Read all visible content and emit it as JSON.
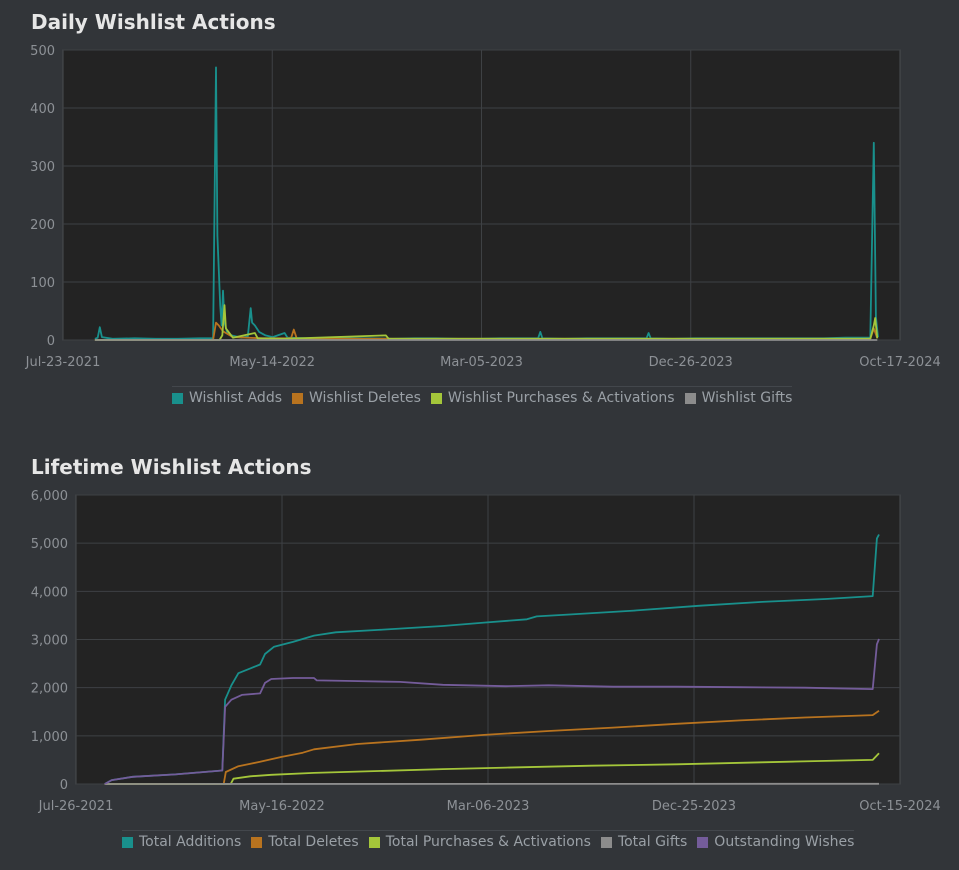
{
  "charts": [
    {
      "title": "Daily Wishlist Actions",
      "legend": [
        "Wishlist Adds",
        "Wishlist Deletes",
        "Wishlist Purchases & Activations",
        "Wishlist Gifts"
      ]
    },
    {
      "title": "Lifetime Wishlist Actions",
      "legend": [
        "Total Additions",
        "Total Deletes",
        "Total Purchases & Activations",
        "Total Gifts",
        "Outstanding Wishes"
      ]
    }
  ],
  "chart_data": [
    {
      "type": "line",
      "title": "Daily Wishlist Actions",
      "x_type": "date",
      "xlim": [
        "2021-07-23",
        "2024-10-17"
      ],
      "x_ticks": [
        "Jul-23-2021",
        "May-14-2022",
        "Mar-05-2023",
        "Dec-26-2023",
        "Oct-17-2024"
      ],
      "ylim": [
        0,
        500
      ],
      "y_ticks": [
        0,
        100,
        200,
        300,
        400,
        500
      ],
      "grid": true,
      "legend_position": "bottom",
      "series": [
        {
          "name": "Wishlist Adds",
          "color": "#19908c",
          "points": [
            [
              "2021-09-06",
              2
            ],
            [
              "2021-09-10",
              4
            ],
            [
              "2021-09-13",
              22
            ],
            [
              "2021-09-16",
              5
            ],
            [
              "2021-10-01",
              2
            ],
            [
              "2021-11-01",
              3
            ],
            [
              "2021-12-01",
              2
            ],
            [
              "2022-01-01",
              2
            ],
            [
              "2022-02-01",
              3
            ],
            [
              "2022-02-20",
              3
            ],
            [
              "2022-02-24",
              470
            ],
            [
              "2022-02-26",
              180
            ],
            [
              "2022-02-28",
              120
            ],
            [
              "2022-03-02",
              60
            ],
            [
              "2022-03-04",
              25
            ],
            [
              "2022-03-06",
              85
            ],
            [
              "2022-03-08",
              30
            ],
            [
              "2022-03-12",
              12
            ],
            [
              "2022-03-18",
              8
            ],
            [
              "2022-04-01",
              4
            ],
            [
              "2022-04-10",
              6
            ],
            [
              "2022-04-14",
              55
            ],
            [
              "2022-04-16",
              30
            ],
            [
              "2022-04-20",
              25
            ],
            [
              "2022-04-26",
              14
            ],
            [
              "2022-05-05",
              8
            ],
            [
              "2022-05-15",
              5
            ],
            [
              "2022-06-01",
              12
            ],
            [
              "2022-06-05",
              4
            ],
            [
              "2022-07-01",
              3
            ],
            [
              "2022-08-01",
              3
            ],
            [
              "2022-09-01",
              3
            ],
            [
              "2022-10-01",
              3
            ],
            [
              "2022-11-01",
              2
            ],
            [
              "2022-12-01",
              3
            ],
            [
              "2023-01-01",
              3
            ],
            [
              "2023-02-01",
              2
            ],
            [
              "2023-03-01",
              2
            ],
            [
              "2023-04-01",
              3
            ],
            [
              "2023-05-01",
              3
            ],
            [
              "2023-05-25",
              3
            ],
            [
              "2023-05-28",
              14
            ],
            [
              "2023-05-31",
              3
            ],
            [
              "2023-07-01",
              2
            ],
            [
              "2023-08-01",
              3
            ],
            [
              "2023-09-01",
              3
            ],
            [
              "2023-10-01",
              3
            ],
            [
              "2023-10-25",
              3
            ],
            [
              "2023-10-28",
              12
            ],
            [
              "2023-10-31",
              3
            ],
            [
              "2023-12-01",
              2
            ],
            [
              "2024-01-01",
              3
            ],
            [
              "2024-02-01",
              3
            ],
            [
              "2024-03-01",
              3
            ],
            [
              "2024-04-01",
              3
            ],
            [
              "2024-05-01",
              3
            ],
            [
              "2024-06-01",
              3
            ],
            [
              "2024-07-01",
              3
            ],
            [
              "2024-08-01",
              4
            ],
            [
              "2024-09-05",
              4
            ],
            [
              "2024-09-10",
              340
            ],
            [
              "2024-09-13",
              40
            ],
            [
              "2024-09-16",
              5
            ]
          ]
        },
        {
          "name": "Wishlist Deletes",
          "color": "#b8731f",
          "points": [
            [
              "2021-09-06",
              0
            ],
            [
              "2022-02-20",
              0
            ],
            [
              "2022-02-24",
              30
            ],
            [
              "2022-02-28",
              25
            ],
            [
              "2022-03-06",
              15
            ],
            [
              "2022-03-20",
              5
            ],
            [
              "2022-05-01",
              3
            ],
            [
              "2022-06-10",
              3
            ],
            [
              "2022-06-14",
              18
            ],
            [
              "2022-06-18",
              3
            ],
            [
              "2022-08-01",
              2
            ],
            [
              "2023-01-01",
              2
            ],
            [
              "2023-06-01",
              2
            ],
            [
              "2024-01-01",
              2
            ],
            [
              "2024-06-01",
              2
            ],
            [
              "2024-09-05",
              2
            ],
            [
              "2024-09-10",
              20
            ],
            [
              "2024-09-15",
              3
            ]
          ]
        },
        {
          "name": "Wishlist Purchases & Activations",
          "color": "#a4c63a",
          "points": [
            [
              "2021-09-06",
              0
            ],
            [
              "2022-03-01",
              0
            ],
            [
              "2022-03-05",
              8
            ],
            [
              "2022-03-08",
              60
            ],
            [
              "2022-03-10",
              20
            ],
            [
              "2022-03-20",
              4
            ],
            [
              "2022-04-20",
              12
            ],
            [
              "2022-04-24",
              3
            ],
            [
              "2022-06-01",
              2
            ],
            [
              "2022-10-22",
              8
            ],
            [
              "2022-10-26",
              2
            ],
            [
              "2023-03-01",
              2
            ],
            [
              "2023-08-01",
              2
            ],
            [
              "2024-02-01",
              2
            ],
            [
              "2024-09-05",
              2
            ],
            [
              "2024-09-10",
              25
            ],
            [
              "2024-09-12",
              38
            ],
            [
              "2024-09-15",
              3
            ]
          ]
        },
        {
          "name": "Wishlist Gifts",
          "color": "#8c8c8c",
          "points": [
            [
              "2021-09-06",
              0
            ],
            [
              "2024-09-15",
              0
            ]
          ]
        }
      ]
    },
    {
      "type": "line",
      "title": "Lifetime Wishlist Actions",
      "x_type": "date",
      "xlim": [
        "2021-07-26",
        "2024-10-15"
      ],
      "x_ticks": [
        "Jul-26-2021",
        "May-16-2022",
        "Mar-06-2023",
        "Dec-25-2023",
        "Oct-15-2024"
      ],
      "ylim": [
        0,
        6000
      ],
      "y_ticks": [
        "0",
        "1,000",
        "2,000",
        "3,000",
        "4,000",
        "5,000",
        "6,000"
      ],
      "grid": true,
      "legend_position": "bottom",
      "series": [
        {
          "name": "Total Additions",
          "color": "#19908c",
          "points": [
            [
              "2021-09-05",
              0
            ],
            [
              "2021-09-15",
              80
            ],
            [
              "2021-10-15",
              150
            ],
            [
              "2021-12-15",
              200
            ],
            [
              "2022-02-20",
              280
            ],
            [
              "2022-02-24",
              1750
            ],
            [
              "2022-03-05",
              2050
            ],
            [
              "2022-03-15",
              2300
            ],
            [
              "2022-04-01",
              2400
            ],
            [
              "2022-04-15",
              2480
            ],
            [
              "2022-04-22",
              2700
            ],
            [
              "2022-05-05",
              2850
            ],
            [
              "2022-06-01",
              2950
            ],
            [
              "2022-07-01",
              3080
            ],
            [
              "2022-08-01",
              3150
            ],
            [
              "2022-10-01",
              3200
            ],
            [
              "2023-01-01",
              3280
            ],
            [
              "2023-03-01",
              3350
            ],
            [
              "2023-05-01",
              3420
            ],
            [
              "2023-05-15",
              3480
            ],
            [
              "2023-07-01",
              3520
            ],
            [
              "2023-10-01",
              3600
            ],
            [
              "2024-01-01",
              3700
            ],
            [
              "2024-04-01",
              3780
            ],
            [
              "2024-07-01",
              3840
            ],
            [
              "2024-09-06",
              3900
            ],
            [
              "2024-09-12",
              5100
            ],
            [
              "2024-09-15",
              5180
            ]
          ]
        },
        {
          "name": "Total Deletes",
          "color": "#b8731f",
          "points": [
            [
              "2021-09-05",
              0
            ],
            [
              "2022-02-22",
              0
            ],
            [
              "2022-02-25",
              250
            ],
            [
              "2022-03-15",
              370
            ],
            [
              "2022-04-15",
              460
            ],
            [
              "2022-05-15",
              560
            ],
            [
              "2022-06-15",
              650
            ],
            [
              "2022-07-01",
              720
            ],
            [
              "2022-09-01",
              830
            ],
            [
              "2022-12-01",
              920
            ],
            [
              "2023-03-01",
              1020
            ],
            [
              "2023-06-01",
              1100
            ],
            [
              "2023-09-01",
              1170
            ],
            [
              "2023-12-01",
              1250
            ],
            [
              "2024-03-01",
              1320
            ],
            [
              "2024-06-01",
              1380
            ],
            [
              "2024-09-06",
              1430
            ],
            [
              "2024-09-15",
              1520
            ]
          ]
        },
        {
          "name": "Total Purchases & Activations",
          "color": "#a4c63a",
          "points": [
            [
              "2021-09-05",
              0
            ],
            [
              "2022-03-04",
              0
            ],
            [
              "2022-03-08",
              110
            ],
            [
              "2022-04-01",
              160
            ],
            [
              "2022-05-01",
              190
            ],
            [
              "2022-07-01",
              230
            ],
            [
              "2022-10-01",
              270
            ],
            [
              "2023-01-01",
              310
            ],
            [
              "2023-04-01",
              340
            ],
            [
              "2023-08-01",
              380
            ],
            [
              "2023-12-01",
              410
            ],
            [
              "2024-04-01",
              450
            ],
            [
              "2024-07-01",
              480
            ],
            [
              "2024-09-06",
              500
            ],
            [
              "2024-09-15",
              640
            ]
          ]
        },
        {
          "name": "Total Gifts",
          "color": "#8c8c8c",
          "points": [
            [
              "2021-09-05",
              0
            ],
            [
              "2024-09-15",
              5
            ]
          ]
        },
        {
          "name": "Outstanding Wishes",
          "color": "#745c9a",
          "points": [
            [
              "2021-09-05",
              0
            ],
            [
              "2021-09-15",
              80
            ],
            [
              "2021-10-15",
              150
            ],
            [
              "2021-12-15",
              200
            ],
            [
              "2022-02-20",
              280
            ],
            [
              "2022-02-24",
              1600
            ],
            [
              "2022-03-05",
              1750
            ],
            [
              "2022-03-20",
              1850
            ],
            [
              "2022-04-15",
              1880
            ],
            [
              "2022-04-22",
              2100
            ],
            [
              "2022-05-01",
              2180
            ],
            [
              "2022-06-01",
              2200
            ],
            [
              "2022-07-01",
              2200
            ],
            [
              "2022-07-05",
              2150
            ],
            [
              "2022-08-15",
              2140
            ],
            [
              "2022-11-01",
              2120
            ],
            [
              "2023-01-01",
              2060
            ],
            [
              "2023-04-01",
              2030
            ],
            [
              "2023-06-01",
              2050
            ],
            [
              "2023-09-01",
              2020
            ],
            [
              "2023-12-01",
              2020
            ],
            [
              "2024-03-01",
              2010
            ],
            [
              "2024-06-01",
              2000
            ],
            [
              "2024-09-06",
              1970
            ],
            [
              "2024-09-12",
              2900
            ],
            [
              "2024-09-15",
              3010
            ]
          ]
        }
      ]
    }
  ]
}
